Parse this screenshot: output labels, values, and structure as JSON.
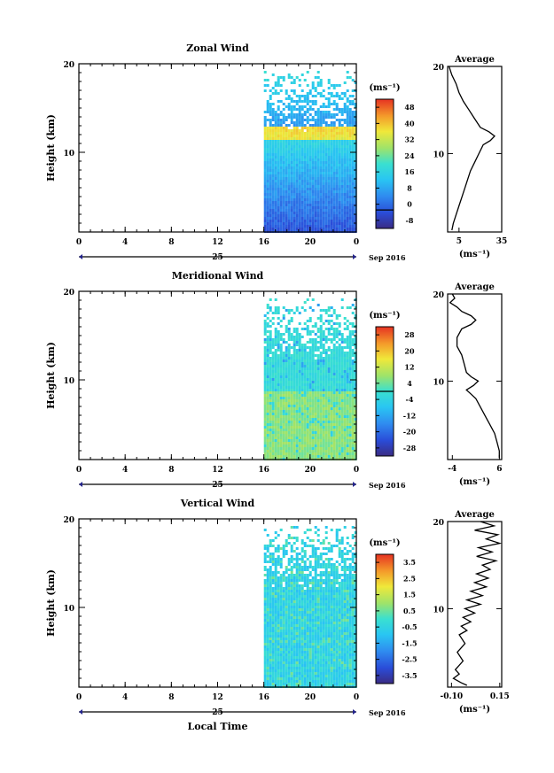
{
  "chart_data": [
    {
      "type": "heatmap",
      "title": "Zonal Wind",
      "ylabel": "Height (km)",
      "xlabel": "",
      "unit_label": "(ms⁻¹)",
      "x_ticks": [
        "0",
        "4",
        "8",
        "12",
        "16",
        "20",
        "0"
      ],
      "y_ticks": [
        "20",
        "10"
      ],
      "xlim": [
        0,
        24
      ],
      "ylim": [
        1,
        20
      ],
      "data_start_hour": 16,
      "day_label": "25",
      "month_label": "Sep 2016",
      "colorbar": {
        "ticks": [
          "48",
          "40",
          "32",
          "24",
          "16",
          "8",
          "0",
          "-8"
        ],
        "min": -8,
        "max": 48,
        "zero_line": 0
      },
      "profile": [
        [
          -2,
          20
        ],
        [
          0,
          19
        ],
        [
          3,
          18
        ],
        [
          5,
          17
        ],
        [
          8,
          16
        ],
        [
          12,
          15
        ],
        [
          16,
          14
        ],
        [
          20,
          13
        ],
        [
          26,
          12.5
        ],
        [
          30,
          12
        ],
        [
          27,
          11.5
        ],
        [
          22,
          11
        ],
        [
          19,
          10
        ],
        [
          16,
          9
        ],
        [
          13,
          8
        ],
        [
          11,
          7
        ],
        [
          9,
          6
        ],
        [
          7,
          5
        ],
        [
          5,
          4
        ],
        [
          3,
          3
        ],
        [
          1,
          2
        ],
        [
          0,
          1.2
        ]
      ],
      "profile_title": "Average",
      "profile_ticks": [
        "5",
        "35"
      ],
      "profile_xlim": [
        -3,
        35
      ],
      "profile_unit": "(ms⁻¹)"
    },
    {
      "type": "heatmap",
      "title": "Meridional Wind",
      "ylabel": "Height (km)",
      "xlabel": "",
      "unit_label": "(ms⁻¹)",
      "x_ticks": [
        "0",
        "4",
        "8",
        "12",
        "16",
        "20",
        "0"
      ],
      "y_ticks": [
        "20",
        "10"
      ],
      "xlim": [
        0,
        24
      ],
      "ylim": [
        1,
        20
      ],
      "data_start_hour": 16,
      "day_label": "25",
      "month_label": "Sep 2016",
      "colorbar": {
        "ticks": [
          "28",
          "20",
          "12",
          "4",
          "-4",
          "-12",
          "-20",
          "-28"
        ],
        "min": -28,
        "max": 28,
        "zero_line": 0
      },
      "profile": [
        [
          -4,
          20
        ],
        [
          -3.5,
          19.5
        ],
        [
          -4.5,
          19
        ],
        [
          -3,
          18.5
        ],
        [
          -2,
          18
        ],
        [
          0,
          17.5
        ],
        [
          1,
          17
        ],
        [
          0,
          16.5
        ],
        [
          -2,
          16
        ],
        [
          -3,
          15
        ],
        [
          -3,
          14
        ],
        [
          -2,
          13
        ],
        [
          -1.5,
          12
        ],
        [
          -1,
          11
        ],
        [
          0,
          10.5
        ],
        [
          1.5,
          10
        ],
        [
          0.5,
          9.5
        ],
        [
          -1,
          9
        ],
        [
          0,
          8.5
        ],
        [
          1,
          8
        ],
        [
          2,
          7
        ],
        [
          3,
          6
        ],
        [
          4,
          5
        ],
        [
          5,
          4
        ],
        [
          5.5,
          3
        ],
        [
          6,
          2
        ],
        [
          6,
          1.2
        ]
      ],
      "profile_title": "Average",
      "profile_ticks": [
        "-4",
        "6"
      ],
      "profile_xlim": [
        -5,
        6.5
      ],
      "profile_unit": "(ms⁻¹)"
    },
    {
      "type": "heatmap",
      "title": "Vertical Wind",
      "ylabel": "Height (km)",
      "xlabel": "Local Time",
      "unit_label": "(ms⁻¹)",
      "x_ticks": [
        "0",
        "4",
        "8",
        "12",
        "16",
        "20",
        "0"
      ],
      "y_ticks": [
        "20",
        "10"
      ],
      "xlim": [
        0,
        24
      ],
      "ylim": [
        1,
        20
      ],
      "data_start_hour": 16,
      "day_label": "25",
      "month_label": "Sep 2016",
      "colorbar": {
        "ticks": [
          "3.5",
          "2.5",
          "1.5",
          "0.5",
          "-0.5",
          "-1.5",
          "-2.5",
          "-3.5"
        ],
        "min": -3.5,
        "max": 3.5,
        "zero_line": null
      },
      "profile": [
        [
          0.05,
          20
        ],
        [
          0.12,
          19.5
        ],
        [
          0.02,
          19
        ],
        [
          0.14,
          18.5
        ],
        [
          0.08,
          18
        ],
        [
          0.15,
          17.5
        ],
        [
          0.04,
          17
        ],
        [
          0.11,
          16.5
        ],
        [
          0.03,
          16
        ],
        [
          0.13,
          15.5
        ],
        [
          0.06,
          15
        ],
        [
          0.1,
          14.5
        ],
        [
          0.03,
          14
        ],
        [
          0.09,
          13.5
        ],
        [
          0.02,
          13
        ],
        [
          0.08,
          12.5
        ],
        [
          0.0,
          12
        ],
        [
          0.06,
          11.5
        ],
        [
          -0.02,
          11
        ],
        [
          0.05,
          10.5
        ],
        [
          -0.03,
          10
        ],
        [
          0.02,
          9.5
        ],
        [
          -0.04,
          9
        ],
        [
          0.0,
          8.5
        ],
        [
          -0.05,
          8
        ],
        [
          -0.02,
          7.5
        ],
        [
          -0.06,
          7
        ],
        [
          -0.03,
          6
        ],
        [
          -0.07,
          5
        ],
        [
          -0.04,
          4
        ],
        [
          -0.08,
          3
        ],
        [
          -0.06,
          2.5
        ],
        [
          -0.09,
          2
        ],
        [
          -0.05,
          1.5
        ],
        [
          -0.02,
          1.2
        ]
      ],
      "profile_title": "Average",
      "profile_ticks": [
        "-0.10",
        "0.15"
      ],
      "profile_xlim": [
        -0.12,
        0.16
      ],
      "profile_unit": "(ms⁻¹)"
    }
  ]
}
